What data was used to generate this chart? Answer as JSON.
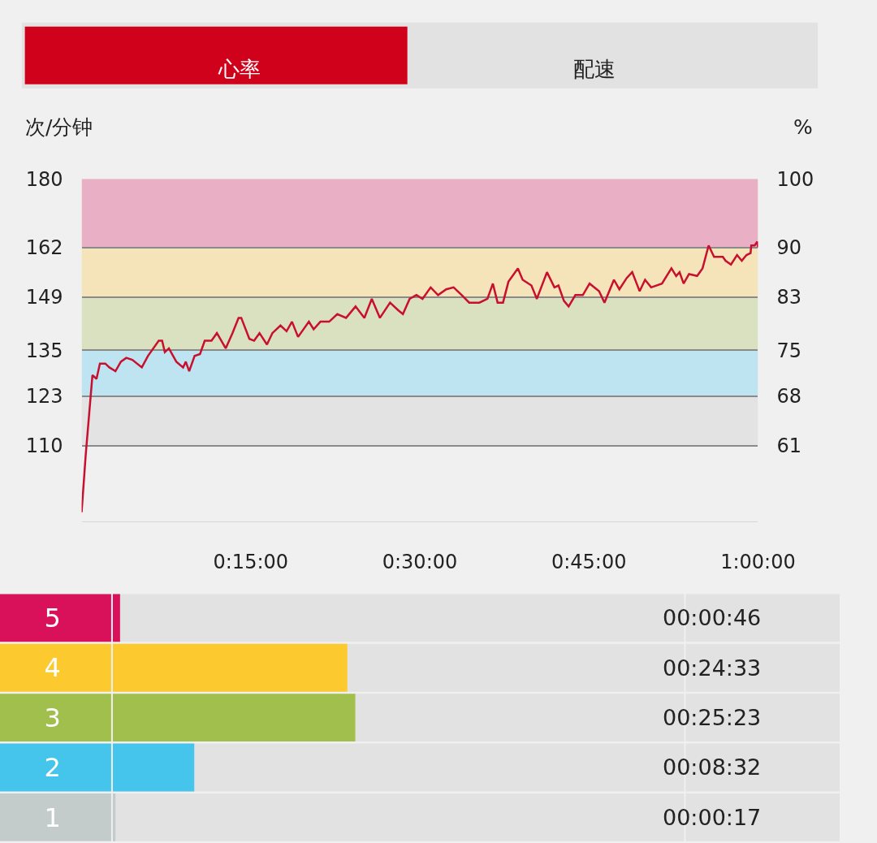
{
  "chart_data": [
    {
      "type": "other",
      "annotations": [
        "心率",
        "配速"
      ]
    },
    {
      "type": "line",
      "ylabel": "次/分钟",
      "y2label": "%",
      "x": [
        0,
        0.006,
        0.016,
        0.022,
        0.027,
        0.035,
        0.041,
        0.05,
        0.058,
        0.066,
        0.075,
        0.089,
        0.098,
        0.114,
        0.119,
        0.123,
        0.129,
        0.14,
        0.15,
        0.154,
        0.159,
        0.167,
        0.175,
        0.182,
        0.192,
        0.2,
        0.213,
        0.223,
        0.232,
        0.236,
        0.248,
        0.255,
        0.263,
        0.274,
        0.282,
        0.294,
        0.303,
        0.311,
        0.32,
        0.336,
        0.343,
        0.353,
        0.366,
        0.378,
        0.391,
        0.405,
        0.418,
        0.429,
        0.441,
        0.456,
        0.468,
        0.475,
        0.485,
        0.495,
        0.504,
        0.516,
        0.527,
        0.539,
        0.55,
        0.562,
        0.573,
        0.588,
        0.6,
        0.608,
        0.615,
        0.623,
        0.631,
        0.645,
        0.652,
        0.665,
        0.673,
        0.688,
        0.699,
        0.705,
        0.713,
        0.72,
        0.73,
        0.741,
        0.751,
        0.765,
        0.773,
        0.787,
        0.795,
        0.806,
        0.814,
        0.825,
        0.833,
        0.842,
        0.858,
        0.872,
        0.879,
        0.884,
        0.89,
        0.898,
        0.91,
        0.918,
        0.927,
        0.935,
        0.948,
        0.952,
        0.96,
        0.969,
        0.976,
        0.983,
        0.989,
        0.99,
        0.995,
        0.999,
        1.0
      ],
      "series": [
        {
          "color": "#c8102e",
          "values": [
            92.5,
            107.5,
            128.5,
            127.5,
            131.5,
            131.5,
            130.5,
            129.5,
            132,
            133,
            132.5,
            130.5,
            133.5,
            137.5,
            137.5,
            134.5,
            135.5,
            132,
            130.5,
            132,
            129.5,
            133.5,
            134,
            137.5,
            137.5,
            139.5,
            135.5,
            139.5,
            143.5,
            143.5,
            138,
            137.5,
            139.5,
            136.5,
            139.5,
            141.5,
            140,
            142.5,
            138.5,
            142.5,
            140.5,
            142.5,
            142.5,
            144.5,
            143.5,
            146.5,
            143.5,
            148.5,
            143.5,
            147.5,
            145.5,
            144.5,
            148.5,
            149.5,
            148.5,
            151.5,
            149.5,
            151,
            151.5,
            149.5,
            147.5,
            147.5,
            148.5,
            152.5,
            147.5,
            147.5,
            153,
            156.5,
            153.5,
            152,
            148.5,
            155.5,
            151.5,
            152,
            148,
            146.5,
            149.5,
            149.5,
            152.5,
            150.5,
            147.5,
            153.5,
            151,
            154,
            155.5,
            150.5,
            153.5,
            151.5,
            152.5,
            156.5,
            154.5,
            155.5,
            152.5,
            155,
            154.5,
            156.5,
            162.5,
            159.5,
            159.5,
            158.5,
            157.5,
            160,
            158.5,
            160,
            160.5,
            162.5,
            162.5,
            163.5,
            162
          ]
        }
      ],
      "xlim": [
        0,
        1
      ],
      "xticks": [
        {
          "value": 0.25,
          "label": "0:15:00"
        },
        {
          "value": 0.5,
          "label": "0:30:00"
        },
        {
          "value": 0.75,
          "label": "0:45:00"
        },
        {
          "value": 1,
          "label": "1:00:00"
        }
      ],
      "ylim": [
        90,
        180
      ],
      "yticks": [
        110,
        123,
        135,
        149,
        162,
        180
      ],
      "y2lim": [
        50,
        100
      ],
      "y2ticks": [
        {
          "value": 61.11,
          "label": "61"
        },
        {
          "value": 68.33,
          "label": "68"
        },
        75,
        {
          "value": 82.78,
          "label": "83"
        },
        90,
        100
      ],
      "bands": [
        {
          "axis": "y",
          "from": 110,
          "to": 123,
          "color": "#e3e3e3"
        },
        {
          "axis": "y",
          "from": 123,
          "to": 135,
          "color": "#bfe4f1"
        },
        {
          "axis": "y",
          "from": 135,
          "to": 149,
          "color": "#d9e1c1"
        },
        {
          "axis": "y",
          "from": 149,
          "to": 162,
          "color": "#f5e4b9"
        },
        {
          "axis": "y",
          "from": 162,
          "to": 180,
          "color": "#e8afc5"
        }
      ],
      "grid": "y"
    },
    {
      "type": "bar",
      "orientation": "horizontal",
      "categories": [
        "5",
        "4",
        "3",
        "2",
        "1"
      ],
      "values": [
        0.767,
        24.55,
        25.383,
        8.533,
        0.283
      ],
      "colors": [
        "#d9105a",
        "#fcc92f",
        "#a0bf4c",
        "#45c4ec",
        "#c4cbcb"
      ],
      "value_labels": [
        "00:00:46",
        "00:24:33",
        "00:25:23",
        "00:08:32",
        "00:00:17"
      ],
      "xlim": [
        0,
        59.8
      ],
      "tick_labels": "y"
    }
  ]
}
